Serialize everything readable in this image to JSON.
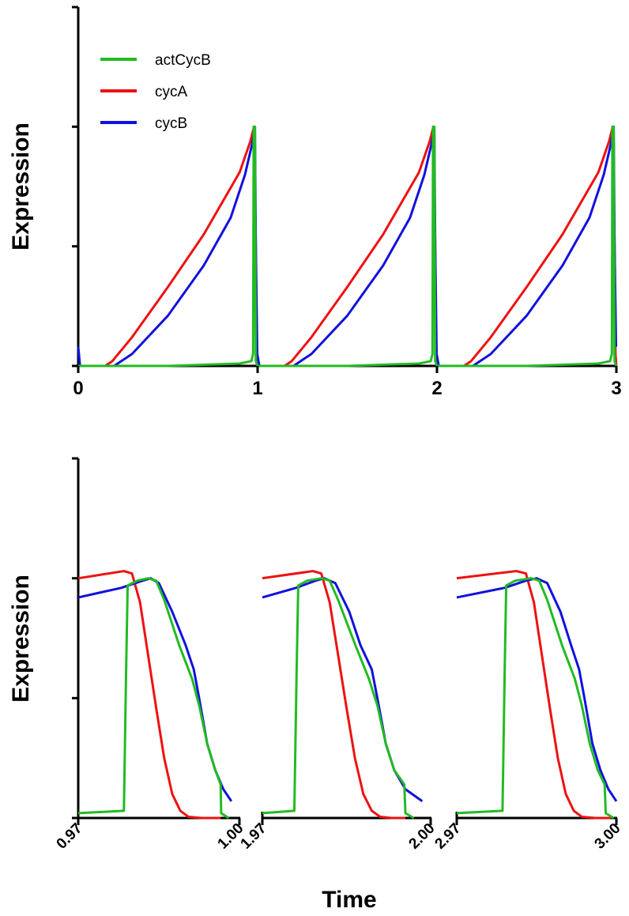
{
  "chart_data": [
    {
      "type": "line",
      "title": "",
      "xlabel": "",
      "ylabel": "Expression",
      "xlim": [
        0,
        3
      ],
      "ylim": [
        0,
        1.5
      ],
      "x_ticks": [
        "0",
        "1",
        "2",
        "3"
      ],
      "y_tick_values": [
        0,
        0.5,
        1.0,
        1.5
      ],
      "y_tick_labels": "none",
      "legend": {
        "placement": "top-left"
      },
      "colors": {
        "actCycB": "#22bb22",
        "cycA": "#ee1111",
        "cycB": "#1111dd"
      },
      "series": [
        {
          "name": "actCycB",
          "color": "#22bb22",
          "points": [
            [
              0,
              0
            ],
            [
              0.5,
              0
            ],
            [
              0.9,
              0.01
            ],
            [
              0.965,
              0.02
            ],
            [
              0.975,
              0.05
            ],
            [
              0.978,
              1.0
            ],
            [
              0.985,
              1.0
            ],
            [
              0.99,
              0.02
            ],
            [
              1.0,
              0
            ],
            [
              1.5,
              0
            ],
            [
              1.9,
              0.01
            ],
            [
              1.965,
              0.02
            ],
            [
              1.975,
              0.05
            ],
            [
              1.978,
              1.0
            ],
            [
              1.985,
              1.0
            ],
            [
              1.99,
              0.02
            ],
            [
              2.0,
              0
            ],
            [
              2.5,
              0
            ],
            [
              2.9,
              0.01
            ],
            [
              2.965,
              0.02
            ],
            [
              2.975,
              0.05
            ],
            [
              2.978,
              1.0
            ],
            [
              2.985,
              1.0
            ],
            [
              2.99,
              0.02
            ],
            [
              3.0,
              0
            ]
          ]
        },
        {
          "name": "cycA",
          "color": "#ee1111",
          "points": [
            [
              0,
              0
            ],
            [
              0.15,
              0
            ],
            [
              0.19,
              0.02
            ],
            [
              0.3,
              0.12
            ],
            [
              0.5,
              0.33
            ],
            [
              0.7,
              0.55
            ],
            [
              0.9,
              0.81
            ],
            [
              0.96,
              0.94
            ],
            [
              0.98,
              1.0
            ],
            [
              0.99,
              0.5
            ],
            [
              0.995,
              0.05
            ],
            [
              1.0,
              0
            ],
            [
              1.15,
              0
            ],
            [
              1.19,
              0.02
            ],
            [
              1.3,
              0.12
            ],
            [
              1.5,
              0.33
            ],
            [
              1.7,
              0.55
            ],
            [
              1.9,
              0.81
            ],
            [
              1.96,
              0.94
            ],
            [
              1.98,
              1.0
            ],
            [
              1.99,
              0.5
            ],
            [
              1.995,
              0.05
            ],
            [
              2.0,
              0
            ],
            [
              2.15,
              0
            ],
            [
              2.19,
              0.02
            ],
            [
              2.3,
              0.12
            ],
            [
              2.5,
              0.33
            ],
            [
              2.7,
              0.55
            ],
            [
              2.9,
              0.81
            ],
            [
              2.96,
              0.94
            ],
            [
              2.98,
              1.0
            ],
            [
              2.99,
              0.5
            ],
            [
              2.995,
              0.05
            ],
            [
              3.0,
              0
            ]
          ]
        },
        {
          "name": "cycB",
          "color": "#1111dd",
          "points": [
            [
              0,
              0.08
            ],
            [
              0.01,
              0
            ],
            [
              0.2,
              0
            ],
            [
              0.3,
              0.05
            ],
            [
              0.5,
              0.21
            ],
            [
              0.7,
              0.42
            ],
            [
              0.85,
              0.62
            ],
            [
              0.93,
              0.8
            ],
            [
              0.97,
              0.93
            ],
            [
              0.985,
              1.0
            ],
            [
              0.99,
              0.5
            ],
            [
              0.998,
              0.05
            ],
            [
              1.01,
              0
            ],
            [
              1.2,
              0
            ],
            [
              1.3,
              0.05
            ],
            [
              1.5,
              0.21
            ],
            [
              1.7,
              0.42
            ],
            [
              1.85,
              0.62
            ],
            [
              1.93,
              0.8
            ],
            [
              1.97,
              0.93
            ],
            [
              1.985,
              1.0
            ],
            [
              1.99,
              0.5
            ],
            [
              1.998,
              0.05
            ],
            [
              2.01,
              0
            ],
            [
              2.2,
              0
            ],
            [
              2.3,
              0.05
            ],
            [
              2.5,
              0.21
            ],
            [
              2.7,
              0.42
            ],
            [
              2.85,
              0.62
            ],
            [
              2.93,
              0.8
            ],
            [
              2.97,
              0.93
            ],
            [
              2.985,
              1.0
            ],
            [
              2.99,
              0.5
            ],
            [
              2.998,
              0.08
            ]
          ]
        }
      ]
    },
    {
      "type": "line",
      "title": "",
      "xlabel": "Time",
      "ylabel": "Expression",
      "ylim": [
        0,
        1.5
      ],
      "y_tick_values": [
        0,
        0.5,
        1.0,
        1.5
      ],
      "y_tick_labels": "none",
      "panels": [
        {
          "xlim": [
            0.97,
            1.0
          ],
          "tick_labels": [
            "0.97",
            "1.00"
          ],
          "series": [
            {
              "name": "actCycB",
              "color": "#22bb22",
              "points": [
                [
                  0.97,
                  0.02
                ],
                [
                  0.9785,
                  0.03
                ],
                [
                  0.9789,
                  0.6
                ],
                [
                  0.9792,
                  0.97
                ],
                [
                  0.981,
                  0.99
                ],
                [
                  0.983,
                  1.0
                ],
                [
                  0.9845,
                  0.99
                ],
                [
                  0.986,
                  0.91
                ],
                [
                  0.9888,
                  0.72
                ],
                [
                  0.9912,
                  0.58
                ],
                [
                  0.9925,
                  0.47
                ],
                [
                  0.994,
                  0.31
                ],
                [
                  0.9955,
                  0.2
                ],
                [
                  0.9965,
                  0.14
                ],
                [
                  0.9966,
                  0.02
                ],
                [
                  0.998,
                  0.0
                ]
              ]
            },
            {
              "name": "cycA",
              "color": "#ee1111",
              "points": [
                [
                  0.97,
                  1.0
                ],
                [
                  0.9785,
                  1.03
                ],
                [
                  0.98,
                  1.02
                ],
                [
                  0.9815,
                  0.9
                ],
                [
                  0.983,
                  0.68
                ],
                [
                  0.9845,
                  0.46
                ],
                [
                  0.986,
                  0.25
                ],
                [
                  0.9875,
                  0.1
                ],
                [
                  0.989,
                  0.03
                ],
                [
                  0.9905,
                  0.005
                ],
                [
                  0.993,
                  0.0
                ],
                [
                  0.9965,
                  0.0
                ]
              ]
            },
            {
              "name": "cycB",
              "color": "#1111dd",
              "points": [
                [
                  0.97,
                  0.92
                ],
                [
                  0.978,
                  0.96
                ],
                [
                  0.982,
                  0.99
                ],
                [
                  0.9835,
                  1.0
                ],
                [
                  0.985,
                  0.98
                ],
                [
                  0.9875,
                  0.86
                ],
                [
                  0.99,
                  0.72
                ],
                [
                  0.9915,
                  0.62
                ],
                [
                  0.9925,
                  0.5
                ],
                [
                  0.994,
                  0.31
                ],
                [
                  0.9955,
                  0.2
                ],
                [
                  0.997,
                  0.12
                ],
                [
                  0.9985,
                  0.07
                ]
              ]
            }
          ]
        },
        {
          "xlim": [
            1.97,
            2.0
          ],
          "tick_labels": [
            "1.97",
            "2.00"
          ],
          "series": [
            {
              "name": "actCycB",
              "color": "#22bb22",
              "points": [
                [
                  1.97,
                  0.02
                ],
                [
                  1.9757,
                  0.03
                ],
                [
                  1.9761,
                  0.6
                ],
                [
                  1.9764,
                  0.97
                ],
                [
                  1.978,
                  0.99
                ],
                [
                  1.9805,
                  1.0
                ],
                [
                  1.982,
                  0.99
                ],
                [
                  1.9835,
                  0.91
                ],
                [
                  1.9866,
                  0.72
                ],
                [
                  1.989,
                  0.58
                ],
                [
                  1.9905,
                  0.47
                ],
                [
                  1.992,
                  0.31
                ],
                [
                  1.9935,
                  0.2
                ],
                [
                  1.9953,
                  0.14
                ],
                [
                  1.9955,
                  0.02
                ],
                [
                  1.997,
                  0.0
                ]
              ]
            },
            {
              "name": "cycA",
              "color": "#ee1111",
              "points": [
                [
                  1.97,
                  1.0
                ],
                [
                  1.979,
                  1.03
                ],
                [
                  1.9805,
                  1.02
                ],
                [
                  1.982,
                  0.9
                ],
                [
                  1.9835,
                  0.68
                ],
                [
                  1.985,
                  0.46
                ],
                [
                  1.9865,
                  0.25
                ],
                [
                  1.988,
                  0.1
                ],
                [
                  1.9895,
                  0.03
                ],
                [
                  1.991,
                  0.005
                ],
                [
                  1.993,
                  0.0
                ],
                [
                  1.9955,
                  0.0
                ]
              ]
            },
            {
              "name": "cycB",
              "color": "#1111dd",
              "points": [
                [
                  1.97,
                  0.92
                ],
                [
                  1.976,
                  0.96
                ],
                [
                  1.9795,
                  0.99
                ],
                [
                  1.981,
                  1.0
                ],
                [
                  1.983,
                  0.98
                ],
                [
                  1.9855,
                  0.86
                ],
                [
                  1.9875,
                  0.72
                ],
                [
                  1.9895,
                  0.62
                ],
                [
                  1.9905,
                  0.5
                ],
                [
                  1.992,
                  0.31
                ],
                [
                  1.9935,
                  0.2
                ],
                [
                  1.9955,
                  0.12
                ],
                [
                  1.9985,
                  0.07
                ]
              ]
            }
          ]
        },
        {
          "xlim": [
            2.97,
            3.0
          ],
          "tick_labels": [
            "2.97",
            "3.00"
          ],
          "series": [
            {
              "name": "actCycB",
              "color": "#22bb22",
              "points": [
                [
                  2.97,
                  0.02
                ],
                [
                  2.9786,
                  0.03
                ],
                [
                  2.979,
                  0.6
                ],
                [
                  2.9793,
                  0.97
                ],
                [
                  2.981,
                  0.99
                ],
                [
                  2.984,
                  1.0
                ],
                [
                  2.9855,
                  0.99
                ],
                [
                  2.987,
                  0.91
                ],
                [
                  2.9898,
                  0.72
                ],
                [
                  2.9922,
                  0.58
                ],
                [
                  2.9935,
                  0.47
                ],
                [
                  2.995,
                  0.31
                ],
                [
                  2.9965,
                  0.2
                ],
                [
                  2.9978,
                  0.14
                ],
                [
                  2.998,
                  0.02
                ],
                [
                  2.9995,
                  0.0
                ]
              ]
            },
            {
              "name": "cycA",
              "color": "#ee1111",
              "points": [
                [
                  2.97,
                  1.0
                ],
                [
                  2.9812,
                  1.03
                ],
                [
                  2.983,
                  1.02
                ],
                [
                  2.9845,
                  0.9
                ],
                [
                  2.986,
                  0.68
                ],
                [
                  2.9875,
                  0.46
                ],
                [
                  2.989,
                  0.25
                ],
                [
                  2.9905,
                  0.1
                ],
                [
                  2.992,
                  0.03
                ],
                [
                  2.9935,
                  0.005
                ],
                [
                  2.996,
                  0.0
                ],
                [
                  2.999,
                  0.0
                ]
              ]
            },
            {
              "name": "cycB",
              "color": "#1111dd",
              "points": [
                [
                  2.97,
                  0.92
                ],
                [
                  2.979,
                  0.96
                ],
                [
                  2.983,
                  0.99
                ],
                [
                  2.985,
                  1.0
                ],
                [
                  2.987,
                  0.98
                ],
                [
                  2.9895,
                  0.86
                ],
                [
                  2.9915,
                  0.72
                ],
                [
                  2.993,
                  0.62
                ],
                [
                  2.994,
                  0.5
                ],
                [
                  2.9955,
                  0.31
                ],
                [
                  2.997,
                  0.2
                ],
                [
                  2.9985,
                  0.12
                ],
                [
                  3.0,
                  0.07
                ]
              ]
            }
          ]
        }
      ]
    }
  ]
}
